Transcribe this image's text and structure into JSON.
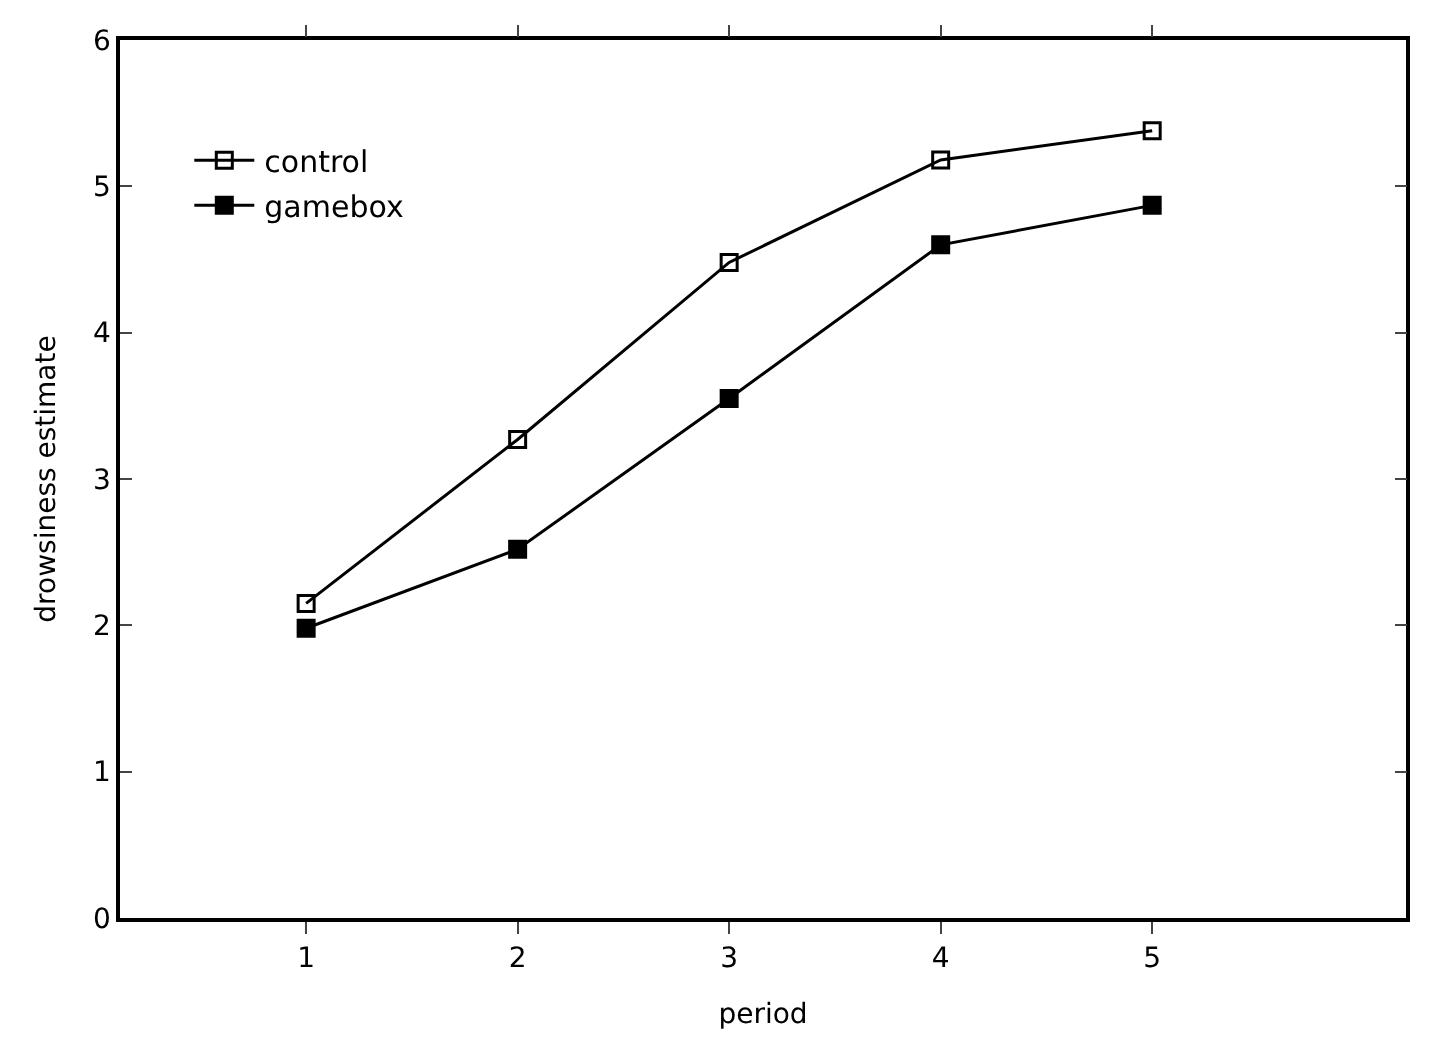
{
  "chart_data": {
    "type": "line",
    "xlabel": "period",
    "ylabel": "drowsiness estimate",
    "x": [
      1,
      2,
      3,
      4,
      5
    ],
    "series": [
      {
        "name": "control",
        "color": "#000000",
        "values": [
          2.15,
          3.27,
          4.48,
          5.18,
          5.38
        ],
        "marker": "square-open"
      },
      {
        "name": "gamebox",
        "color": "#000000",
        "values": [
          1.98,
          2.52,
          3.55,
          4.6,
          4.87
        ],
        "marker": "square"
      }
    ],
    "xlim": [
      0.12,
      6.2
    ],
    "xticks": [
      1,
      2,
      3,
      4,
      5
    ],
    "ylim": [
      0,
      6
    ],
    "yticks": [
      0,
      1,
      2,
      3,
      4,
      5,
      6
    ],
    "legend": "top left",
    "line_style": "solid"
  }
}
